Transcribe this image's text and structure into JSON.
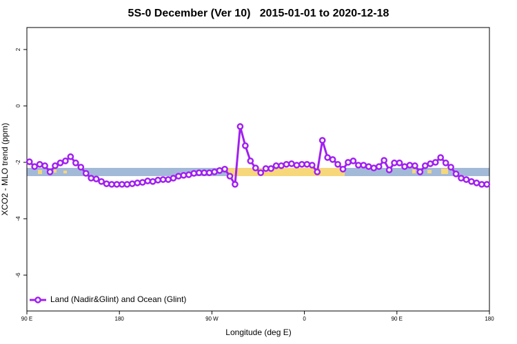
{
  "chart_data": {
    "type": "line",
    "title": "5S-0 December (Ver 10)   2015-01-01 to 2020-12-18",
    "xlabel": "Longitude (deg E)",
    "ylabel": "XCO2 - MLO trend (ppm)",
    "xlim": [
      90,
      540
    ],
    "ylim": [
      -7.27,
      2.78
    ],
    "xticks": [
      {
        "value": 90,
        "label": "90 E"
      },
      {
        "value": 180,
        "label": "180"
      },
      {
        "value": 270,
        "label": "90 W"
      },
      {
        "value": 360,
        "label": "0"
      },
      {
        "value": 450,
        "label": "90 E"
      },
      {
        "value": 540,
        "label": "180"
      }
    ],
    "yticks": [
      -6,
      -4,
      -2,
      0,
      2
    ],
    "legend": "bottom-left",
    "x": [
      92.5,
      97.5,
      102.5,
      107.5,
      112.5,
      117.5,
      122.5,
      127.5,
      132.5,
      137.5,
      142.5,
      147.5,
      152.5,
      157.5,
      162.5,
      167.5,
      172.5,
      177.5,
      182.5,
      187.5,
      192.5,
      197.5,
      202.5,
      207.5,
      212.5,
      217.5,
      222.5,
      227.5,
      232.5,
      237.5,
      242.5,
      247.5,
      252.5,
      257.5,
      262.5,
      267.5,
      272.5,
      277.5,
      282.5,
      287.5,
      292.5,
      297.5,
      302.5,
      307.5,
      312.5,
      317.5,
      322.5,
      327.5,
      332.5,
      337.5,
      342.5,
      347.5,
      352.5,
      357.5,
      362.5,
      367.5,
      372.5,
      377.5,
      382.5,
      387.5,
      392.5,
      397.5,
      402.5,
      407.5,
      412.5,
      417.5,
      422.5,
      427.5,
      432.5,
      437.5,
      442.5,
      447.5,
      452.5,
      457.5,
      462.5,
      467.5,
      472.5,
      477.5,
      482.5,
      487.5,
      492.5,
      497.5,
      502.5,
      507.5,
      512.5,
      517.5,
      522.5,
      527.5,
      532.5,
      537.5
    ],
    "series": [
      {
        "name": "Land (Nadir&Glint) and Ocean (Glint)",
        "color": "#a020f0",
        "values": [
          -1.98,
          -2.15,
          -2.07,
          -2.12,
          -2.34,
          -2.12,
          -2.02,
          -1.95,
          -1.8,
          -2.02,
          -2.17,
          -2.39,
          -2.56,
          -2.59,
          -2.68,
          -2.76,
          -2.78,
          -2.78,
          -2.78,
          -2.78,
          -2.76,
          -2.73,
          -2.71,
          -2.66,
          -2.68,
          -2.63,
          -2.61,
          -2.61,
          -2.56,
          -2.49,
          -2.46,
          -2.44,
          -2.39,
          -2.37,
          -2.37,
          -2.37,
          -2.34,
          -2.29,
          -2.24,
          -2.49,
          -2.78,
          -0.73,
          -1.41,
          -1.95,
          -2.2,
          -2.37,
          -2.22,
          -2.22,
          -2.12,
          -2.12,
          -2.07,
          -2.05,
          -2.1,
          -2.07,
          -2.07,
          -2.1,
          -2.34,
          -1.22,
          -1.83,
          -1.9,
          -2.07,
          -2.24,
          -2,
          -1.95,
          -2.1,
          -2.1,
          -2.15,
          -2.2,
          -2.15,
          -1.93,
          -2.27,
          -2.02,
          -2.02,
          -2.15,
          -2.1,
          -2.12,
          -2.34,
          -2.12,
          -2.05,
          -2,
          -1.83,
          -2.02,
          -2.17,
          -2.41,
          -2.56,
          -2.61,
          -2.68,
          -2.73,
          -2.78,
          -2.78
        ]
      }
    ]
  }
}
